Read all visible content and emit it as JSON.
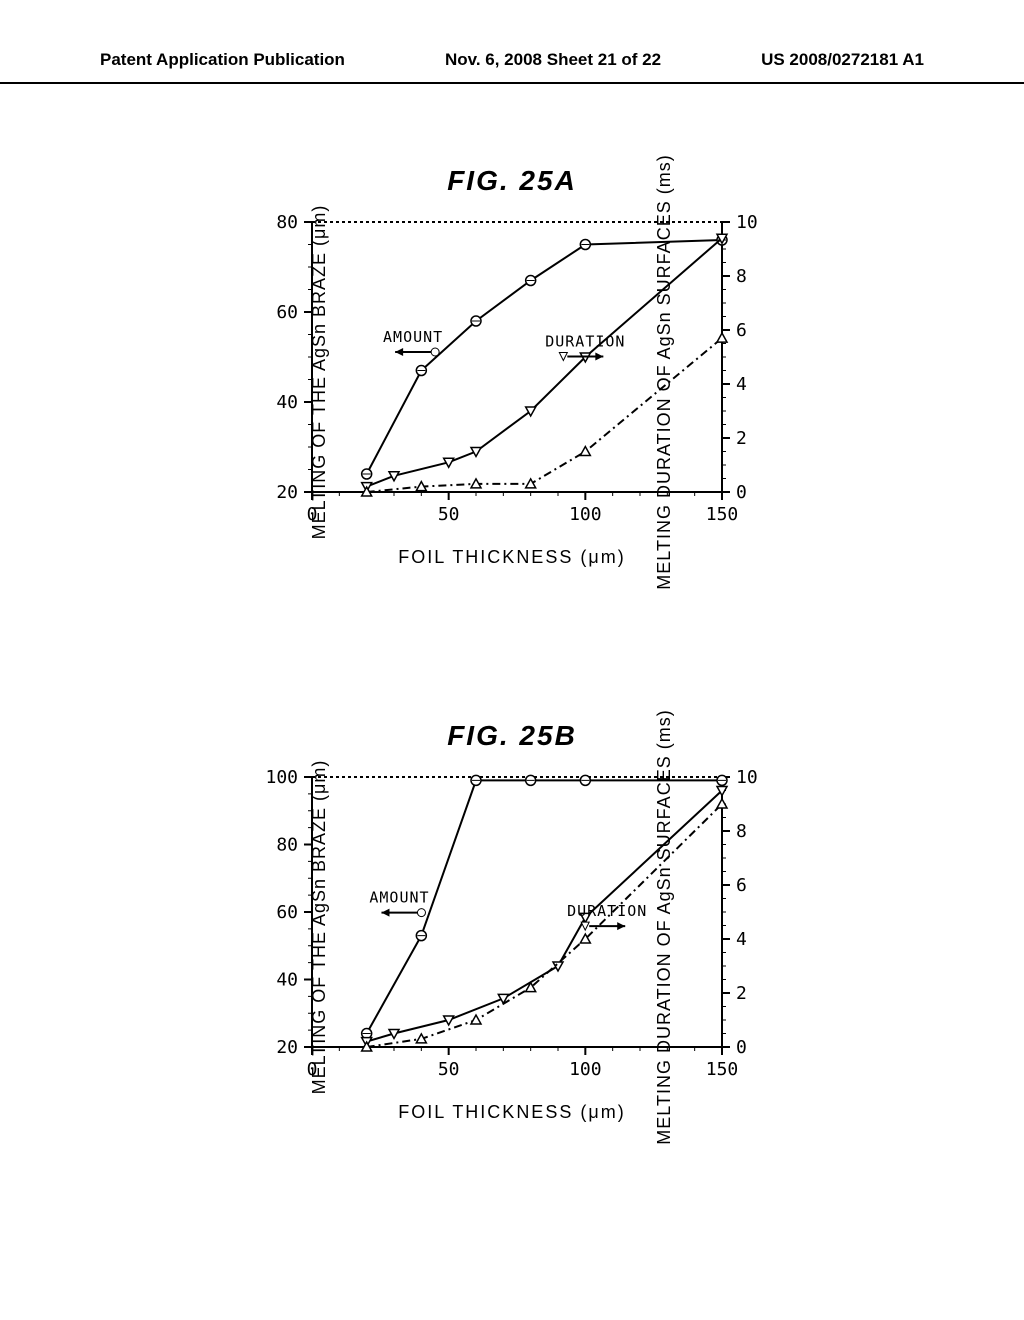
{
  "header": {
    "left": "Patent Application Publication",
    "center": "Nov. 6, 2008  Sheet 21 of 22",
    "right": "US 2008/0272181 A1"
  },
  "chart_a": {
    "title": "FIG. 25A",
    "type": "line",
    "x_label": "FOIL THICKNESS (μm)",
    "y_left_label": "MELTING OF THE AgSn BRAZE (μm)",
    "y_right_label": "MELTING DURATION OF AgSn SURFACES (ms)",
    "xlim": [
      0,
      150
    ],
    "ylim_left": [
      20,
      80
    ],
    "ylim_right": [
      0,
      10
    ],
    "xtick_step": 50,
    "ytick_left_step": 20,
    "ytick_right_step": 2,
    "background_color": "#ffffff",
    "annotations": [
      {
        "text": "AMOUNT",
        "x": 37,
        "y_left": 52,
        "arrow": "left"
      },
      {
        "text": "DURATION",
        "x": 100,
        "y_left": 51,
        "arrow": "right"
      }
    ],
    "series": [
      {
        "name": "amount",
        "marker": "circle",
        "line_style": "solid",
        "axis": "left",
        "data": [
          [
            20,
            24
          ],
          [
            40,
            47
          ],
          [
            60,
            58
          ],
          [
            80,
            67
          ],
          [
            100,
            75
          ],
          [
            150,
            76
          ]
        ]
      },
      {
        "name": "duration_down",
        "marker": "triangle-down",
        "line_style": "solid",
        "axis": "right",
        "data": [
          [
            20,
            0.2
          ],
          [
            30,
            0.6
          ],
          [
            50,
            1.1
          ],
          [
            60,
            1.5
          ],
          [
            80,
            3.0
          ],
          [
            100,
            5.0
          ],
          [
            150,
            9.4
          ]
        ]
      },
      {
        "name": "duration_up",
        "marker": "triangle-up",
        "line_style": "dashdot",
        "axis": "right",
        "data": [
          [
            20,
            0
          ],
          [
            40,
            0.2
          ],
          [
            60,
            0.3
          ],
          [
            80,
            0.3
          ],
          [
            100,
            1.5
          ],
          [
            150,
            5.7
          ]
        ]
      }
    ],
    "line_color": "#000000",
    "line_width": 2
  },
  "chart_b": {
    "title": "FIG. 25B",
    "type": "line",
    "x_label": "FOIL THICKNESS (μm)",
    "y_left_label": "MELTING OF THE AgSn BRAZE (μm)",
    "y_right_label": "MELTING DURATION OF AgSn SURFACES (ms)",
    "xlim": [
      0,
      150
    ],
    "ylim_left": [
      20,
      100
    ],
    "ylim_right": [
      0,
      10
    ],
    "xtick_step": 50,
    "ytick_left_step": 20,
    "ytick_right_step": 2,
    "background_color": "#ffffff",
    "annotations": [
      {
        "text": "AMOUNT",
        "x": 32,
        "y_left": 61,
        "arrow": "left"
      },
      {
        "text": "DURATION",
        "x": 108,
        "y_left": 57,
        "arrow": "right"
      }
    ],
    "series": [
      {
        "name": "amount",
        "marker": "circle",
        "line_style": "solid",
        "axis": "left",
        "data": [
          [
            20,
            24
          ],
          [
            40,
            53
          ],
          [
            60,
            99
          ],
          [
            80,
            99
          ],
          [
            100,
            99
          ],
          [
            150,
            99
          ]
        ]
      },
      {
        "name": "duration_down",
        "marker": "triangle-down",
        "line_style": "solid",
        "axis": "right",
        "data": [
          [
            20,
            0.2
          ],
          [
            30,
            0.5
          ],
          [
            50,
            1.0
          ],
          [
            70,
            1.8
          ],
          [
            90,
            3.0
          ],
          [
            100,
            4.8
          ],
          [
            150,
            9.5
          ]
        ]
      },
      {
        "name": "duration_up",
        "marker": "triangle-up",
        "line_style": "dashdot",
        "axis": "right",
        "data": [
          [
            20,
            0
          ],
          [
            40,
            0.3
          ],
          [
            60,
            1.0
          ],
          [
            80,
            2.2
          ],
          [
            100,
            4.0
          ],
          [
            150,
            9.0
          ]
        ]
      }
    ],
    "line_color": "#000000",
    "line_width": 2
  }
}
